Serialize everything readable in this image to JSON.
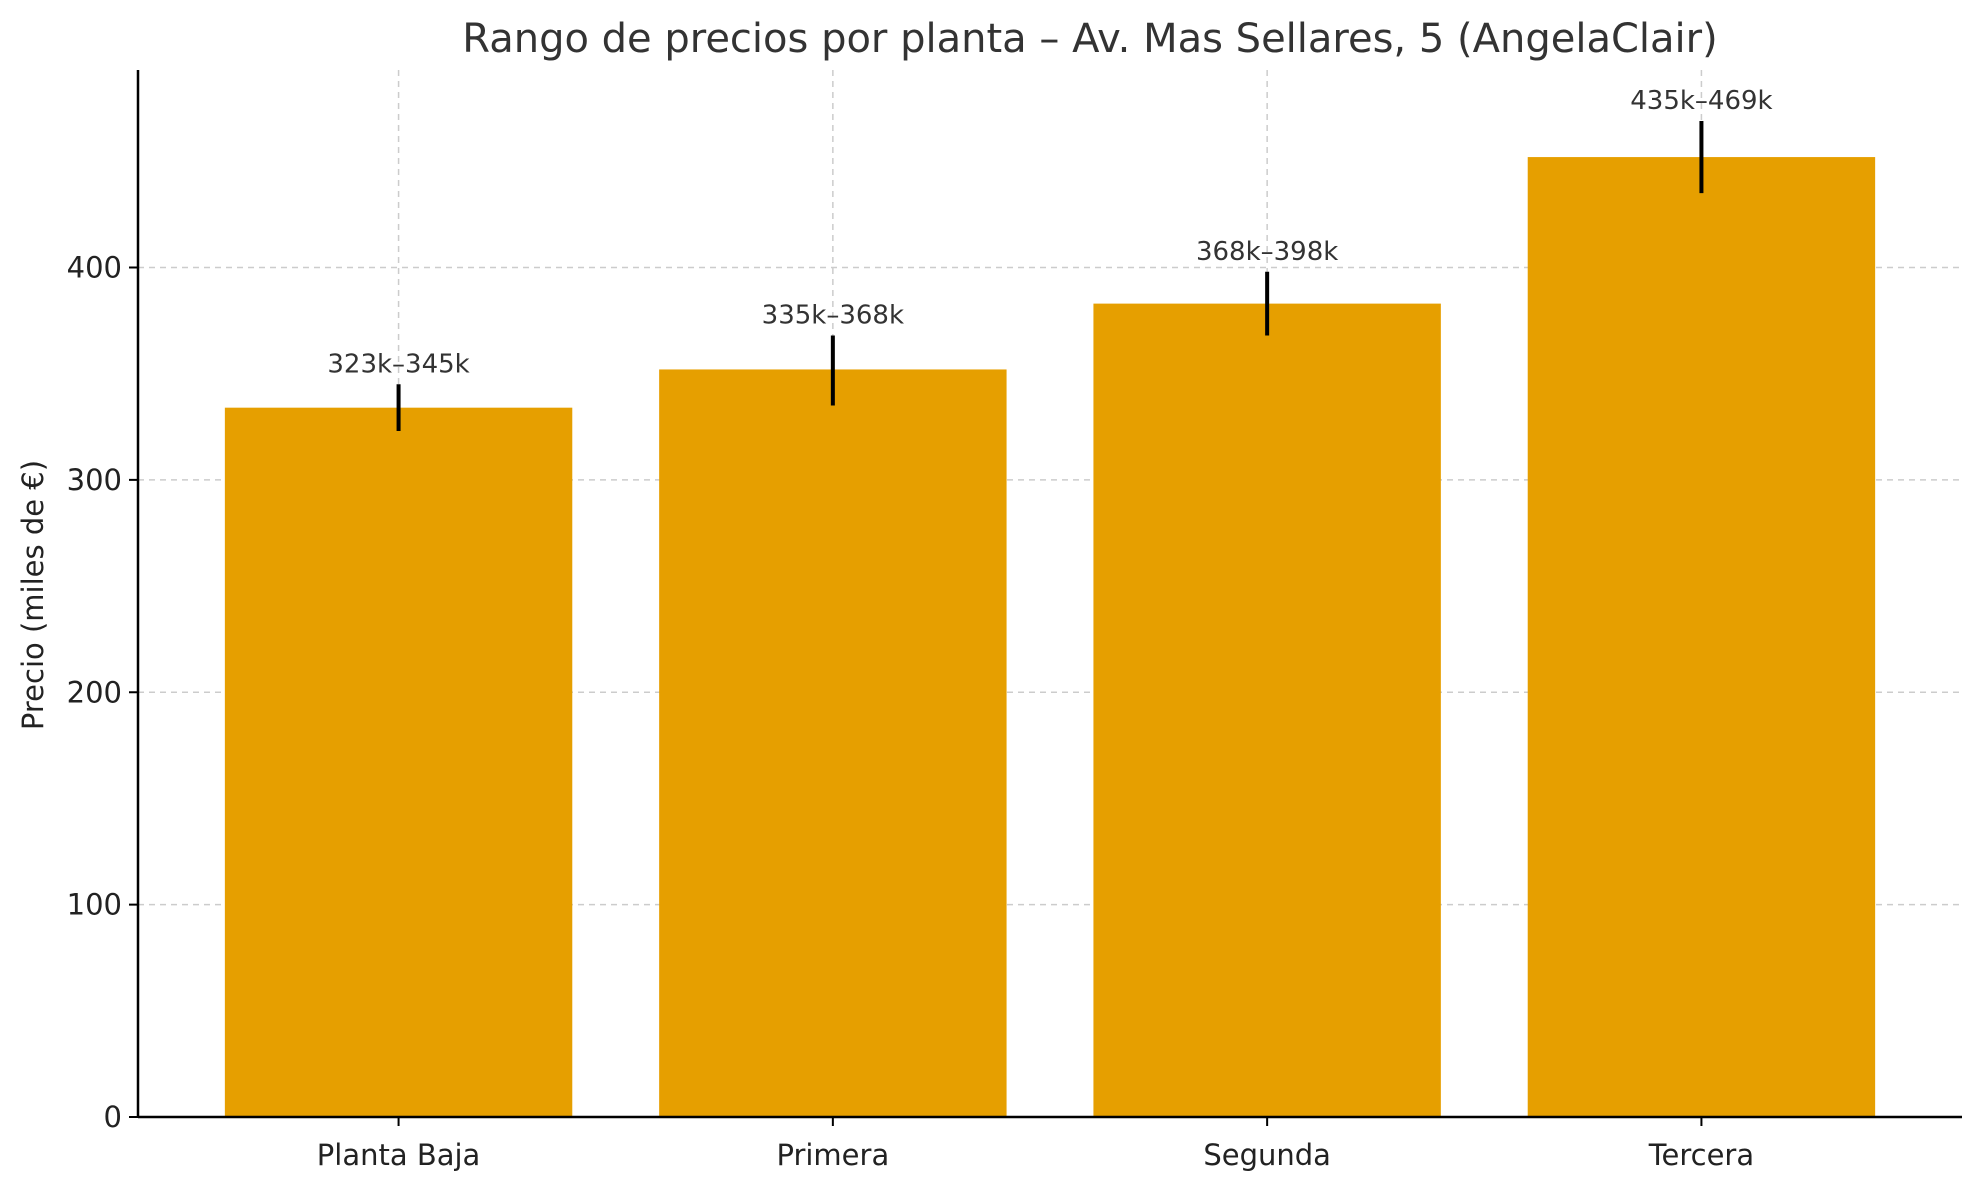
{
  "chart_data": {
    "type": "bar",
    "title": "Rango de precios por planta – Av. Mas Sellares, 5 (AngelaClair)",
    "ylabel": "Precio (miles de €)",
    "xlabel": "",
    "categories": [
      "Planta Baja",
      "Primera",
      "Segunda",
      "Tercera"
    ],
    "values": [
      334,
      352,
      383,
      452
    ],
    "ranges": [
      [
        323,
        345
      ],
      [
        335,
        368
      ],
      [
        368,
        398
      ],
      [
        435,
        469
      ]
    ],
    "data_labels": [
      "323k–345k",
      "335k–368k",
      "368k–398k",
      "435k–469k"
    ],
    "ylim": [
      0,
      493
    ],
    "yticks": [
      0,
      100,
      200,
      300,
      400
    ],
    "grid": true,
    "bar_color": "#E69F00",
    "error_bar_color": "#000000"
  }
}
